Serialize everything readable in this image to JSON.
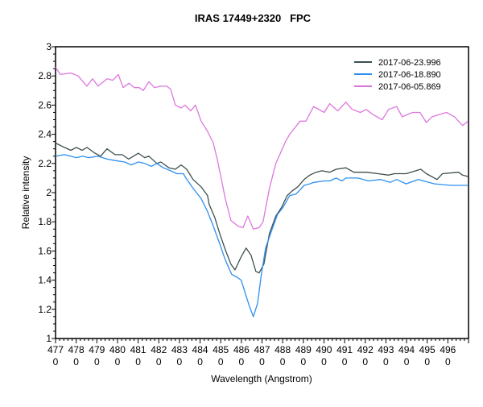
{
  "chart_data": {
    "type": "line",
    "title": "IRAS 17449+2320   FPC",
    "xlabel": "Wavelength (Angstrom)",
    "ylabel": "Relative intensity",
    "xlim": [
      4770,
      4970
    ],
    "ylim": [
      1,
      3
    ],
    "x_ticks": [
      "4770",
      "4780",
      "4790",
      "4800",
      "4810",
      "4820",
      "4830",
      "4840",
      "4850",
      "4860",
      "4870",
      "4880",
      "4890",
      "4900",
      "4910",
      "4920",
      "4930",
      "4940",
      "4950",
      "4960"
    ],
    "y_ticks": [
      "1",
      "1.2",
      "1.4",
      "1.6",
      "1.8",
      "2",
      "2.2",
      "2.4",
      "2.6",
      "2.8",
      "3"
    ],
    "grid": false,
    "legend_position": "top-right",
    "series": [
      {
        "name": "2017-06-23.996",
        "color": "#3d4f4f",
        "x": [
          4770,
          4774.3,
          4777.4,
          4780.1,
          4782.9,
          4785.2,
          4789.1,
          4791.8,
          4794.9,
          4798.8,
          4802.3,
          4805.4,
          4810.1,
          4813.2,
          4815.2,
          4819.1,
          4821,
          4824.9,
          4828,
          4830.8,
          4833.5,
          4836.6,
          4840.5,
          4843.6,
          4844.4,
          4847.1,
          4849.5,
          4852.2,
          4854.9,
          4856.9,
          4859.9,
          4862.3,
          4864.7,
          4867,
          4868.6,
          4870.9,
          4873.6,
          4876.7,
          4879.5,
          4882.2,
          4884.5,
          4887.3,
          4890.4,
          4893.1,
          4896.2,
          4899,
          4902.8,
          4905.9,
          4910.6,
          4914.5,
          4920.4,
          4926.2,
          4931.3,
          4934,
          4939.8,
          4946.9,
          4949.6,
          4954.7,
          4957.4,
          4965.2,
          4967.1,
          4969.9
        ],
        "y": [
          2.34,
          2.31,
          2.29,
          2.31,
          2.29,
          2.31,
          2.27,
          2.25,
          2.3,
          2.26,
          2.26,
          2.23,
          2.27,
          2.24,
          2.25,
          2.2,
          2.21,
          2.17,
          2.16,
          2.19,
          2.16,
          2.09,
          2.04,
          1.98,
          1.92,
          1.83,
          1.72,
          1.61,
          1.51,
          1.47,
          1.56,
          1.62,
          1.57,
          1.46,
          1.45,
          1.51,
          1.72,
          1.84,
          1.9,
          1.98,
          2.01,
          2.04,
          2.09,
          2.12,
          2.14,
          2.15,
          2.14,
          2.16,
          2.17,
          2.14,
          2.14,
          2.13,
          2.12,
          2.13,
          2.13,
          2.16,
          2.13,
          2.09,
          2.13,
          2.14,
          2.12,
          2.11
        ]
      },
      {
        "name": "2017-06-18.890",
        "color": "#2e8fef",
        "x": [
          4770,
          4774.3,
          4780.1,
          4783.2,
          4786,
          4790.6,
          4794.9,
          4798.8,
          4803.5,
          4806.6,
          4810.1,
          4813.2,
          4816.4,
          4819.1,
          4822.2,
          4825.7,
          4828.8,
          4831.9,
          4832.7,
          4836.6,
          4840.5,
          4843.6,
          4846.4,
          4849.5,
          4852.2,
          4855.3,
          4858,
          4859.9,
          4861.9,
          4863.9,
          4865.8,
          4867.8,
          4869.7,
          4871.7,
          4874.4,
          4877.5,
          4880.2,
          4883.4,
          4886.5,
          4890.4,
          4893.1,
          4895.1,
          4900.1,
          4902.8,
          4905.9,
          4908.7,
          4910.6,
          4916.5,
          4921.5,
          4927.4,
          4932.1,
          4935.2,
          4939.8,
          4945.7,
          4953.5,
          4961.3,
          4969.9
        ],
        "y": [
          2.25,
          2.26,
          2.24,
          2.25,
          2.24,
          2.25,
          2.23,
          2.22,
          2.21,
          2.19,
          2.21,
          2.2,
          2.18,
          2.2,
          2.17,
          2.15,
          2.13,
          2.13,
          2.11,
          2.03,
          1.96,
          1.87,
          1.77,
          1.65,
          1.54,
          1.44,
          1.42,
          1.4,
          1.31,
          1.22,
          1.15,
          1.24,
          1.44,
          1.62,
          1.73,
          1.85,
          1.9,
          1.98,
          1.99,
          2.05,
          2.06,
          2.07,
          2.08,
          2.08,
          2.1,
          2.08,
          2.1,
          2.1,
          2.08,
          2.09,
          2.07,
          2.09,
          2.06,
          2.09,
          2.06,
          2.05,
          2.05
        ]
      },
      {
        "name": "2017-06-05.869",
        "color": "#dd77dd",
        "x": [
          4770,
          4772.3,
          4777.4,
          4780.9,
          4785.2,
          4787.9,
          4790.6,
          4794.9,
          4797.7,
          4800.4,
          4802.7,
          4805.5,
          4808.2,
          4810.5,
          4812.5,
          4815.2,
          4817.9,
          4821,
          4823.8,
          4825.7,
          4828,
          4830.8,
          4832.7,
          4835.4,
          4837.8,
          4840.5,
          4843.6,
          4846.4,
          4848.3,
          4850.2,
          4852.2,
          4854.9,
          4858.4,
          4860.8,
          4863.1,
          4865.8,
          4868.6,
          4870.5,
          4873.6,
          4876.7,
          4881.4,
          4883.4,
          4888.4,
          4891.2,
          4895,
          4900.1,
          4902.8,
          4906.7,
          4910.6,
          4913.7,
          4917.6,
          4920.4,
          4924.3,
          4928.2,
          4931.3,
          4935.2,
          4937.9,
          4943,
          4946.5,
          4949.6,
          4952.3,
          4959.3,
          4963.2,
          4967.1,
          4969.8
        ],
        "y": [
          2.86,
          2.81,
          2.82,
          2.8,
          2.73,
          2.78,
          2.73,
          2.78,
          2.77,
          2.81,
          2.72,
          2.75,
          2.72,
          2.72,
          2.7,
          2.76,
          2.72,
          2.73,
          2.73,
          2.71,
          2.6,
          2.58,
          2.6,
          2.56,
          2.6,
          2.49,
          2.42,
          2.34,
          2.23,
          2.1,
          1.96,
          1.81,
          1.77,
          1.76,
          1.84,
          1.75,
          1.76,
          1.8,
          2.03,
          2.2,
          2.35,
          2.4,
          2.49,
          2.49,
          2.59,
          2.55,
          2.61,
          2.56,
          2.62,
          2.57,
          2.55,
          2.57,
          2.53,
          2.5,
          2.57,
          2.59,
          2.52,
          2.55,
          2.55,
          2.48,
          2.52,
          2.55,
          2.52,
          2.46,
          2.49
        ]
      }
    ]
  }
}
